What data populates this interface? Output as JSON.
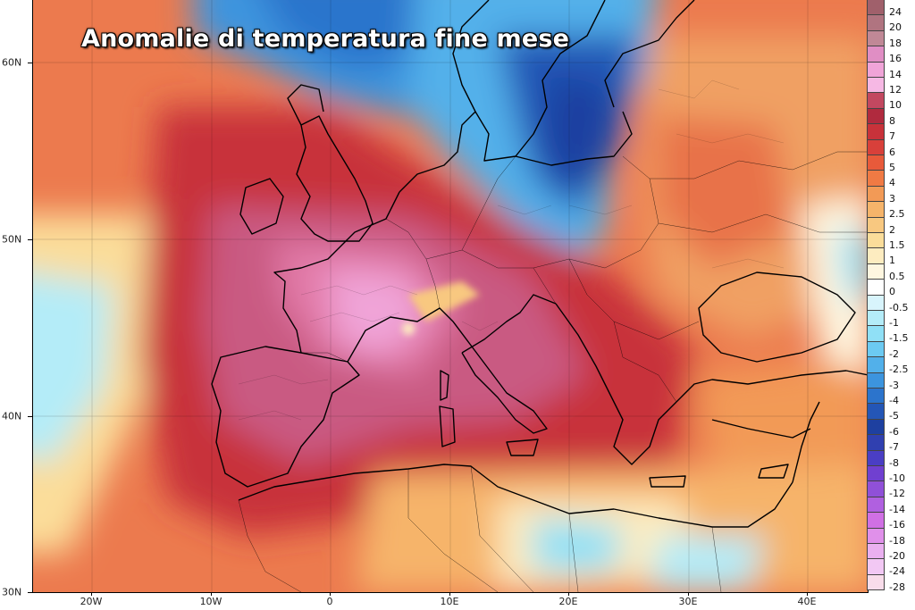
{
  "title": "Anomalie di temperatura fine mese",
  "axes": {
    "lat_labels": [
      "60N",
      "50N",
      "40N",
      "30N"
    ],
    "lat_values": [
      60,
      50,
      40,
      30
    ],
    "lon_labels": [
      "20W",
      "10W",
      "0",
      "10E",
      "20E",
      "30E",
      "40E"
    ],
    "lon_values": [
      -20,
      -10,
      0,
      10,
      20,
      30,
      40
    ],
    "lon_range": [
      -25,
      45
    ],
    "lat_range": [
      30,
      63.5
    ]
  },
  "legend": {
    "labels": [
      "24",
      "20",
      "18",
      "16",
      "14",
      "12",
      "10",
      "8",
      "7",
      "6",
      "5",
      "4",
      "3",
      "2.5",
      "2",
      "1.5",
      "1",
      "0.5",
      "0",
      "-0.5",
      "-1",
      "-1.5",
      "-2",
      "-2.5",
      "-3",
      "-4",
      "-5",
      "-6",
      "-7",
      "-8",
      "-10",
      "-12",
      "-14",
      "-16",
      "-18",
      "-20",
      "-24",
      "-28"
    ],
    "colors": [
      "#a0606b",
      "#b07480",
      "#c08896",
      "#e08ec4",
      "#f0a4d8",
      "#f6b8e4",
      "#c24860",
      "#b02a3e",
      "#c8323a",
      "#d8403a",
      "#e85a3a",
      "#f07a44",
      "#f29a56",
      "#f6b46a",
      "#f8c880",
      "#fbdd9a",
      "#fdecc0",
      "#fef6e0",
      "#ffffff",
      "#d8f4fc",
      "#b4ecf8",
      "#90e0f6",
      "#6ccaf2",
      "#52b0ea",
      "#3c94de",
      "#2c74cc",
      "#2456b6",
      "#1e40a0",
      "#3040b0",
      "#4a3ec4",
      "#7040d0",
      "#9050d8",
      "#b060e0",
      "#d070e4",
      "#e090ea",
      "#eab0f0",
      "#f2c8f4",
      "#f8dcea"
    ]
  },
  "colors": {
    "atlantic_warm": "#e86a48",
    "core_heat": "#e27aa8",
    "anomaly_red": "#c8323a",
    "scandinavia_cold": "#2456b6",
    "eastern_warm": "#f2a064"
  }
}
